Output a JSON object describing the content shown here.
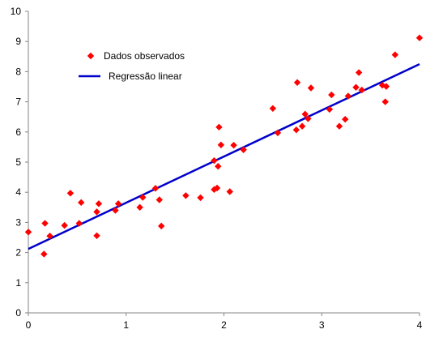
{
  "chart_data": {
    "type": "scatter",
    "title": "",
    "xlabel": "",
    "ylabel": "",
    "xlim": [
      0,
      4
    ],
    "ylim": [
      0,
      10
    ],
    "x_ticks": [
      "0",
      "1",
      "2",
      "3",
      "4"
    ],
    "y_ticks": [
      "0",
      "1",
      "2",
      "3",
      "4",
      "5",
      "6",
      "7",
      "8",
      "9",
      "10"
    ],
    "grid": false,
    "legend_position": "top-left",
    "series": [
      {
        "name": "Dados observados",
        "kind": "scatter",
        "marker": "diamond",
        "color": "#ff0000",
        "points": [
          [
            0.0,
            2.68
          ],
          [
            0.16,
            1.95
          ],
          [
            0.17,
            2.97
          ],
          [
            0.22,
            2.55
          ],
          [
            0.37,
            2.9
          ],
          [
            0.43,
            3.97
          ],
          [
            0.52,
            2.97
          ],
          [
            0.54,
            3.66
          ],
          [
            0.7,
            3.35
          ],
          [
            0.7,
            2.56
          ],
          [
            0.72,
            3.62
          ],
          [
            0.89,
            3.4
          ],
          [
            0.92,
            3.62
          ],
          [
            1.14,
            3.5
          ],
          [
            1.17,
            3.83
          ],
          [
            1.3,
            4.13
          ],
          [
            1.34,
            3.75
          ],
          [
            1.36,
            2.88
          ],
          [
            1.61,
            3.89
          ],
          [
            1.76,
            3.82
          ],
          [
            1.9,
            4.09
          ],
          [
            1.9,
            5.05
          ],
          [
            1.93,
            4.14
          ],
          [
            1.94,
            4.86
          ],
          [
            1.95,
            6.16
          ],
          [
            1.97,
            5.57
          ],
          [
            2.06,
            4.02
          ],
          [
            2.1,
            5.56
          ],
          [
            2.2,
            5.41
          ],
          [
            2.5,
            6.78
          ],
          [
            2.55,
            5.97
          ],
          [
            2.74,
            6.07
          ],
          [
            2.75,
            7.64
          ],
          [
            2.8,
            6.19
          ],
          [
            2.83,
            6.59
          ],
          [
            2.86,
            6.44
          ],
          [
            2.89,
            7.46
          ],
          [
            3.08,
            6.75
          ],
          [
            3.1,
            7.23
          ],
          [
            3.18,
            6.19
          ],
          [
            3.24,
            6.42
          ],
          [
            3.27,
            7.19
          ],
          [
            3.35,
            7.48
          ],
          [
            3.38,
            7.97
          ],
          [
            3.41,
            7.39
          ],
          [
            3.62,
            7.55
          ],
          [
            3.65,
            7.0
          ],
          [
            3.66,
            7.51
          ],
          [
            3.75,
            8.56
          ],
          [
            4.0,
            9.12
          ]
        ]
      },
      {
        "name": "Regressão linear",
        "kind": "line",
        "color": "#0000cc",
        "x": [
          0,
          4
        ],
        "y": [
          2.12,
          8.25
        ]
      }
    ]
  }
}
